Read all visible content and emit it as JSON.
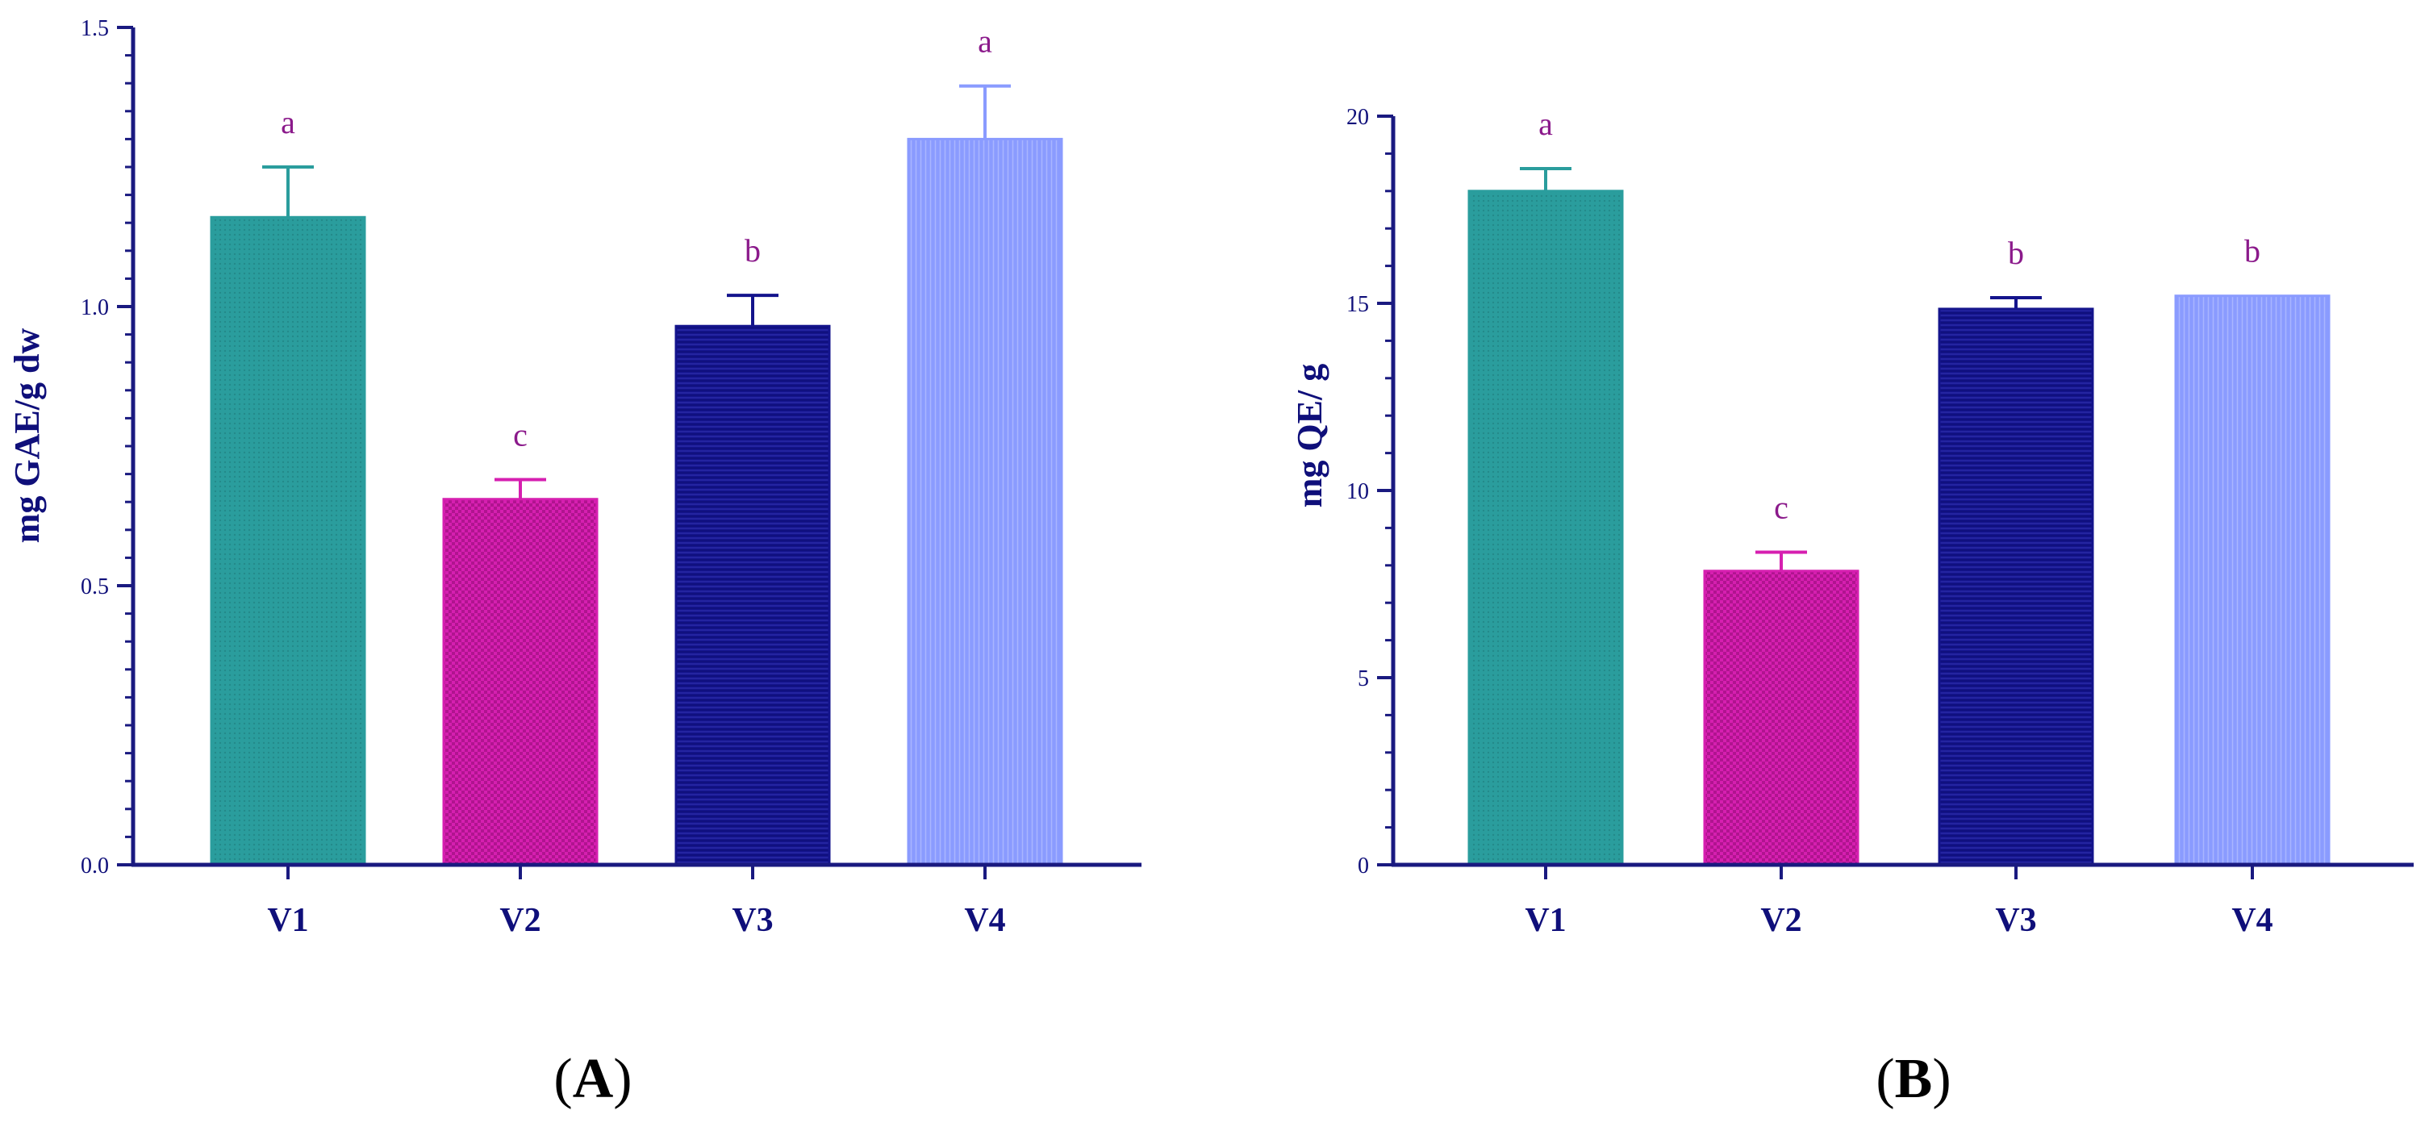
{
  "colors": {
    "axis": "#1a1a80",
    "text": "#0f0f7a",
    "sig": "#8b1a8b",
    "V1": "#2a9d9d",
    "V2": "#d61fb0",
    "V3": "#14148c",
    "V4": "#8a9bff"
  },
  "chart_data": [
    {
      "type": "bar",
      "panel_label": "A",
      "categories": [
        "V1",
        "V2",
        "V3",
        "V4"
      ],
      "values": [
        1.16,
        0.655,
        0.965,
        1.3
      ],
      "errors": [
        0.09,
        0.035,
        0.055,
        0.095
      ],
      "significance": [
        "a",
        "c",
        "b",
        "a"
      ],
      "ylabel": "mg GAE/g dw",
      "xlabel": "",
      "ylim": [
        0,
        1.5
      ],
      "yticks": [
        "0.0",
        "0.5",
        "1.0",
        "1.5"
      ],
      "ytick_values": [
        0,
        0.5,
        1.0,
        1.5
      ],
      "minor_tick_step": 0.05
    },
    {
      "type": "bar",
      "panel_label": "B",
      "categories": [
        "V1",
        "V2",
        "V3",
        "V4"
      ],
      "values": [
        18.0,
        7.85,
        14.85,
        15.2
      ],
      "errors": [
        0.6,
        0.5,
        0.3,
        0
      ],
      "significance": [
        "a",
        "c",
        "b",
        "b"
      ],
      "ylabel": "mg QE/ g",
      "xlabel": "",
      "ylim": [
        0,
        20
      ],
      "yticks": [
        "0",
        "5",
        "10",
        "15",
        "20"
      ],
      "ytick_values": [
        0,
        5,
        10,
        15,
        20
      ],
      "minor_tick_step": 1
    }
  ]
}
